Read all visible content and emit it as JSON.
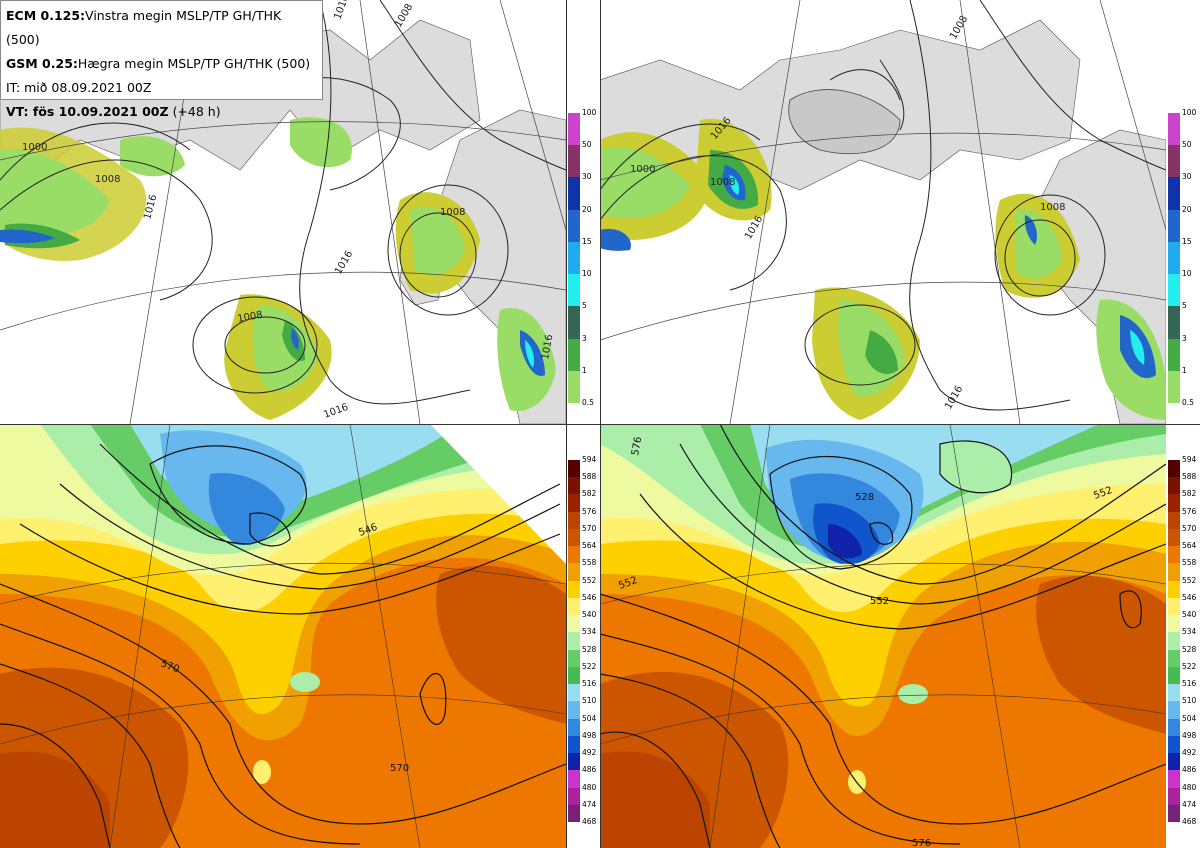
{
  "info": {
    "line1_bold": "ECM 0.125:",
    "line1_rest": "Vinstra megin MSLP/TP GH/THK (500)",
    "line2_bold": "GSM 0.25:",
    "line2_rest": "Hægra megin MSLP/TP GH/THK (500)",
    "line3": "IT: mið 08.09.2021 00Z",
    "line4_bold": "VT: fös 10.09.2021 00Z",
    "line4_rest": "(+48 h)"
  },
  "precip_scale": {
    "levels": [
      "100",
      "50",
      "30",
      "20",
      "15",
      "10",
      "5",
      "3",
      "1",
      "0.5"
    ],
    "colors": [
      "#cc44cc",
      "#883366",
      "#1133aa",
      "#2266cc",
      "#22aaee",
      "#22eeee",
      "#336655",
      "#44aa44",
      "#99dd66",
      "#cccc33"
    ]
  },
  "thickness_scale": {
    "levels": [
      "594",
      "588",
      "582",
      "576",
      "570",
      "564",
      "558",
      "552",
      "546",
      "540",
      "534",
      "528",
      "522",
      "516",
      "510",
      "504",
      "498",
      "492",
      "486",
      "480",
      "474",
      "468"
    ],
    "colors": [
      "#550000",
      "#771100",
      "#992200",
      "#bb4400",
      "#cc5500",
      "#ee7700",
      "#f0a000",
      "#ffd000",
      "#fff070",
      "#eefaa0",
      "#aaeeaa",
      "#66cc66",
      "#44bb55",
      "#99ddf0",
      "#66b8ee",
      "#3388dd",
      "#1155cc",
      "#1122aa",
      "#cc33cc",
      "#aa2299",
      "#772277",
      "#551155"
    ]
  },
  "isobar_labels": {
    "ecm_top": [
      "1016",
      "1008",
      "1000",
      "1008",
      "1016",
      "1008",
      "1016",
      "1008",
      "1016",
      "1016"
    ],
    "gfs_top": [
      "1016",
      "1008",
      "1000",
      "1008",
      "1016",
      "1008",
      "1016"
    ],
    "ecm_bottom": [
      "546",
      "570",
      "570"
    ],
    "gfs_bottom": [
      "528",
      "552",
      "552",
      "552",
      "576",
      "576"
    ]
  }
}
